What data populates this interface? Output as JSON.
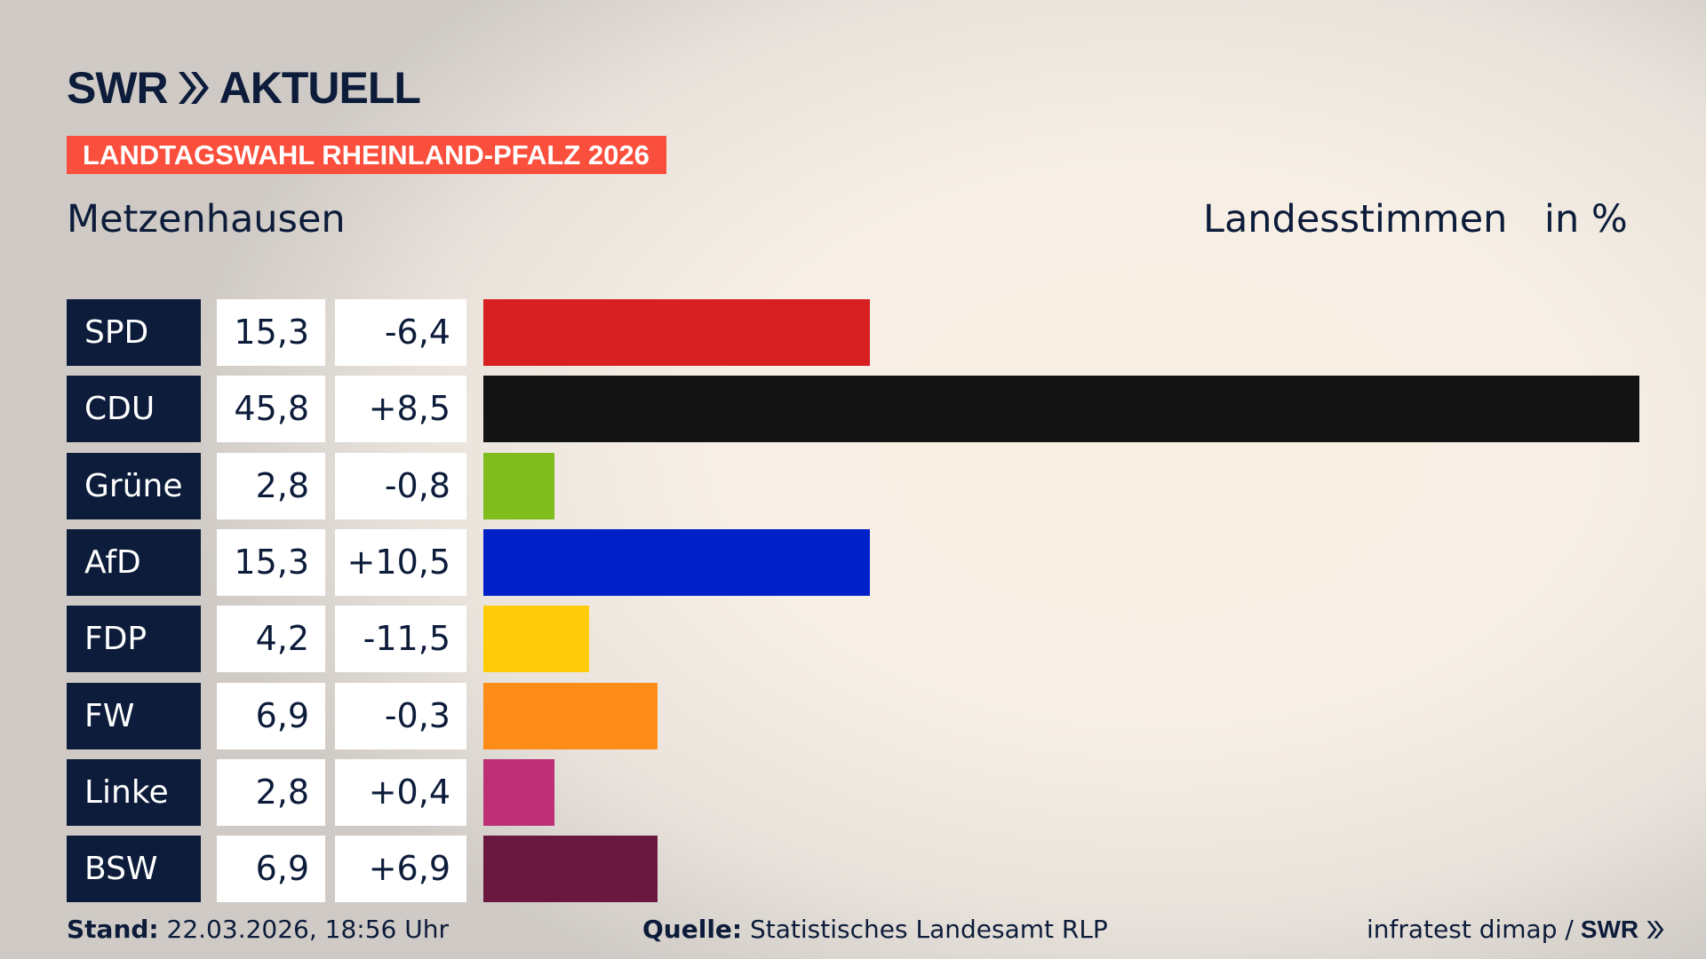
{
  "logo": {
    "brand": "SWR",
    "suffix": "AKTUELL"
  },
  "badge": "LANDTAGSWAHL RHEINLAND-PFALZ 2026",
  "place": "Metzenhausen",
  "header": {
    "type": "Landesstimmen",
    "unit": "in %"
  },
  "chart_data": {
    "type": "bar",
    "title": "Metzenhausen – Landesstimmen in %",
    "categories": [
      "SPD",
      "CDU",
      "Grüne",
      "AfD",
      "FDP",
      "FW",
      "Linke",
      "BSW"
    ],
    "values": [
      15.3,
      45.8,
      2.8,
      15.3,
      4.2,
      6.9,
      2.8,
      6.9
    ],
    "labels": [
      "15,3",
      "45,8",
      "2,8",
      "15,3",
      "4,2",
      "6,9",
      "2,8",
      "6,9"
    ],
    "changes": [
      "-6,4",
      "+8,5",
      "-0,8",
      "+10,5",
      "-11,5",
      "-0,3",
      "+0,4",
      "+6,9"
    ],
    "colors": [
      "#d81f22",
      "#131313",
      "#7ebd1c",
      "#0021c8",
      "#ffcc0a",
      "#ff8c17",
      "#bd3075",
      "#6b1840"
    ],
    "xlim": [
      0,
      45.8
    ]
  },
  "footer": {
    "stand_label": "Stand:",
    "stand": "22.03.2026, 18:56 Uhr",
    "source_label": "Quelle:",
    "source": "Statistisches Landesamt RLP",
    "credit": "infratest dimap /",
    "credit_logo": "SWR"
  }
}
